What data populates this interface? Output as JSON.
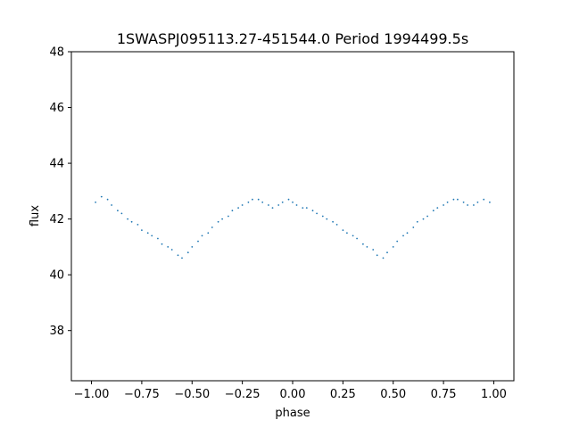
{
  "chart_data": {
    "type": "scatter",
    "title": "1SWASPJ095113.27-451544.0 Period 1994499.5s",
    "xlabel": "phase",
    "ylabel": "flux",
    "xlim": [
      -1.1,
      1.1
    ],
    "ylim": [
      36.2,
      48.0
    ],
    "xticks": [
      -1.0,
      -0.75,
      -0.5,
      -0.25,
      0.0,
      0.25,
      0.5,
      0.75,
      1.0
    ],
    "xtick_labels": [
      "−1.00",
      "−0.75",
      "−0.50",
      "−0.25",
      "0.00",
      "0.25",
      "0.50",
      "0.75",
      "1.00"
    ],
    "yticks": [
      38,
      40,
      42,
      44,
      46,
      48
    ],
    "ytick_labels": [
      "38",
      "40",
      "42",
      "44",
      "46",
      "48"
    ],
    "grid": false,
    "legend": "none",
    "marker_color": "#1f77b4",
    "series": [
      {
        "x": [
          -0.98,
          -0.95,
          -0.92,
          -0.9,
          -0.87,
          -0.85,
          -0.82,
          -0.8,
          -0.77,
          -0.75,
          -0.72,
          -0.7,
          -0.67,
          -0.65,
          -0.62,
          -0.6,
          -0.57,
          -0.55,
          -0.52,
          -0.5,
          -0.47,
          -0.45,
          -0.42,
          -0.4,
          -0.37,
          -0.35,
          -0.32,
          -0.3,
          -0.27,
          -0.25,
          -0.22,
          -0.2,
          -0.17,
          -0.15,
          -0.12,
          -0.1,
          -0.07,
          -0.05,
          -0.02,
          0.0,
          0.02,
          0.05,
          0.07,
          0.1,
          0.12,
          0.15,
          0.17,
          0.2,
          0.22,
          0.25,
          0.27,
          0.3,
          0.32,
          0.35,
          0.37,
          0.4,
          0.42,
          0.45,
          0.47,
          0.5,
          0.52,
          0.55,
          0.57,
          0.6,
          0.62,
          0.65,
          0.67,
          0.7,
          0.72,
          0.75,
          0.77,
          0.8,
          0.82,
          0.85,
          0.87,
          0.9,
          0.92,
          0.95,
          0.98
        ],
        "y": [
          42.6,
          42.8,
          42.7,
          42.5,
          42.3,
          42.2,
          42.0,
          41.9,
          41.8,
          41.6,
          41.5,
          41.4,
          41.3,
          41.1,
          41.0,
          40.9,
          40.7,
          40.6,
          40.8,
          41.0,
          41.2,
          41.4,
          41.5,
          41.7,
          41.9,
          42.0,
          42.1,
          42.3,
          42.4,
          42.5,
          42.6,
          42.7,
          42.7,
          42.6,
          42.5,
          42.4,
          42.5,
          42.6,
          42.7,
          42.6,
          42.5,
          42.4,
          42.4,
          42.3,
          42.2,
          42.1,
          42.0,
          41.9,
          41.8,
          41.6,
          41.5,
          41.4,
          41.3,
          41.1,
          41.0,
          40.9,
          40.7,
          40.6,
          40.8,
          41.0,
          41.2,
          41.4,
          41.5,
          41.7,
          41.9,
          42.0,
          42.1,
          42.3,
          42.4,
          42.5,
          42.6,
          42.7,
          42.7,
          42.6,
          42.5,
          42.5,
          42.6,
          42.7,
          42.6
        ]
      }
    ]
  }
}
